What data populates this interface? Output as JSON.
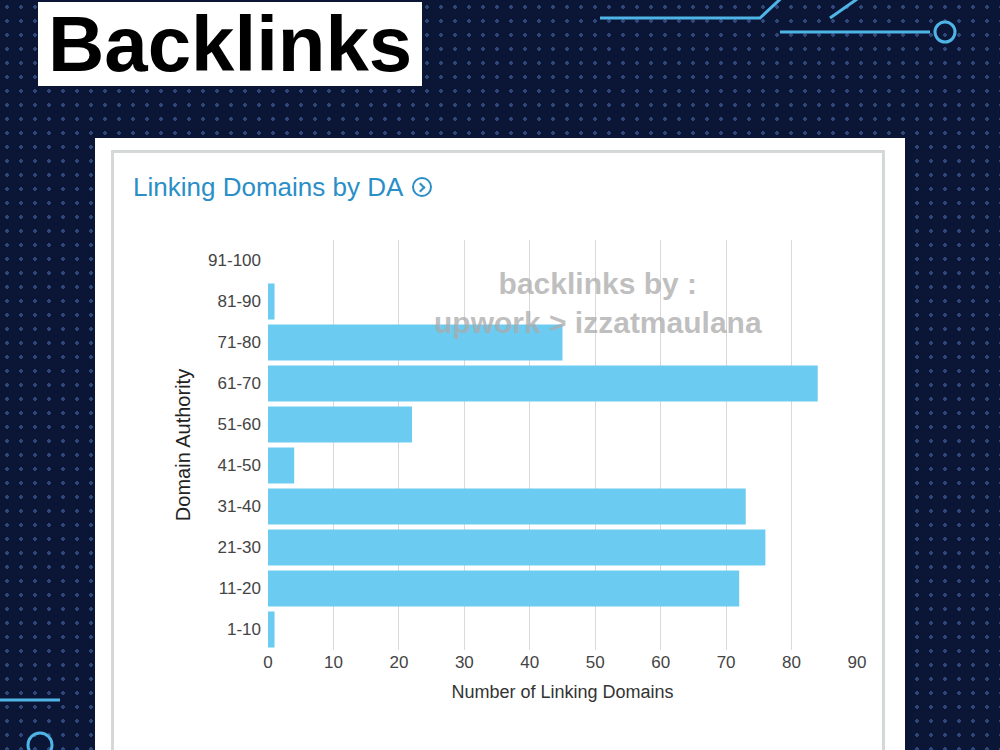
{
  "banner": "Backlinks",
  "chart_data": {
    "type": "bar",
    "orientation": "horizontal",
    "title": "Linking Domains by DA",
    "x_label": "Number of Linking Domains",
    "y_label": "Domain Authority",
    "categories": [
      "91-100",
      "81-90",
      "71-80",
      "61-70",
      "51-60",
      "41-50",
      "31-40",
      "21-30",
      "11-20",
      "1-10"
    ],
    "values": [
      0,
      1,
      45,
      84,
      22,
      4,
      73,
      76,
      72,
      1
    ],
    "color": "#6ccbf0",
    "xlim": [
      0,
      90
    ],
    "xticks": [
      0,
      10,
      20,
      30,
      40,
      50,
      60,
      70,
      80,
      90
    ],
    "grid": true,
    "annotations": [
      "backlinks by :",
      "upwork > izzatmaulana"
    ]
  }
}
